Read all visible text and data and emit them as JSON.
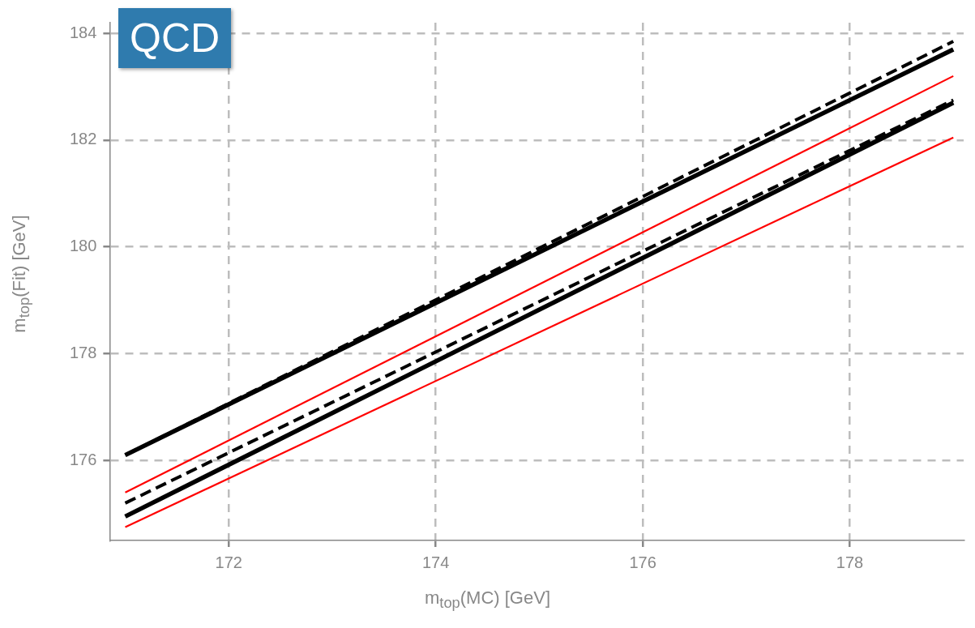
{
  "chart_data": {
    "type": "line",
    "xlabel": "m$_{top}$(MC) [GeV]",
    "ylabel": "m$_{top}$(Fit) [GeV]",
    "x": [
      171,
      179
    ],
    "xlim": [
      170.85,
      179.1
    ],
    "xticks": [
      172,
      174,
      176,
      178
    ],
    "ylim": [
      174.5,
      184.2
    ],
    "yticks": [
      176,
      178,
      180,
      182,
      184
    ],
    "grid": true,
    "legend": false,
    "marker": "none",
    "annotations": [
      "QCD"
    ],
    "series": [
      {
        "color": "#000000",
        "line_style": "dashed",
        "values": [
          176.1,
          183.85
        ]
      },
      {
        "color": "#000000",
        "line_style": "solid",
        "values": [
          176.1,
          183.7
        ]
      },
      {
        "color": "#ff0000",
        "line_style": "solid",
        "values": [
          175.4,
          183.2
        ]
      },
      {
        "color": "#000000",
        "line_style": "dashed",
        "values": [
          175.2,
          182.75
        ]
      },
      {
        "color": "#000000",
        "line_style": "solid",
        "values": [
          174.95,
          182.7
        ]
      },
      {
        "color": "#ff0000",
        "line_style": "solid",
        "values": [
          174.75,
          182.05
        ]
      }
    ]
  }
}
